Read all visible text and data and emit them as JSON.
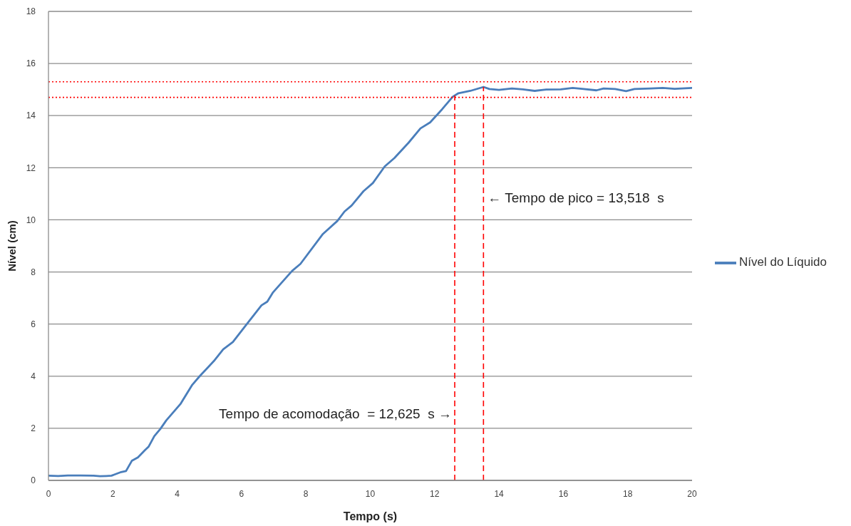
{
  "chart_data": {
    "type": "line",
    "xlabel": "Tempo (s)",
    "ylabel": "Nível (cm)",
    "x": [
      0,
      0.3,
      0.6,
      1.0,
      1.4,
      1.6,
      1.8,
      1.96,
      2.04,
      2.26,
      2.41,
      2.59,
      2.78,
      3.0,
      3.11,
      3.29,
      3.48,
      3.66,
      4.1,
      4.47,
      4.7,
      5.14,
      5.43,
      5.73,
      6.1,
      6.62,
      6.8,
      6.98,
      7.57,
      7.83,
      8.53,
      8.98,
      9.2,
      9.42,
      9.79,
      10.08,
      10.45,
      10.75,
      11.19,
      11.56,
      11.86,
      12.23,
      12.56,
      12.74,
      13.11,
      13.52,
      13.7,
      14.0,
      14.4,
      14.74,
      15.11,
      15.47,
      15.92,
      16.29,
      16.58,
      17.03,
      17.25,
      17.61,
      17.95,
      18.21,
      18.72,
      19.09,
      19.46,
      20.0
    ],
    "series": [
      {
        "name": "Nível do Líquido",
        "color": "#4a7ebb",
        "values": [
          0.18,
          0.17,
          0.19,
          0.19,
          0.18,
          0.16,
          0.17,
          0.18,
          0.22,
          0.32,
          0.36,
          0.75,
          0.88,
          1.16,
          1.29,
          1.7,
          1.98,
          2.3,
          2.93,
          3.67,
          4.0,
          4.58,
          5.03,
          5.31,
          5.9,
          6.72,
          6.86,
          7.22,
          8.04,
          8.31,
          9.46,
          9.96,
          10.32,
          10.55,
          11.1,
          11.41,
          12.05,
          12.37,
          12.96,
          13.51,
          13.74,
          14.24,
          14.72,
          14.86,
          14.95,
          15.1,
          15.02,
          14.99,
          15.04,
          15.01,
          14.95,
          15.0,
          15.01,
          15.06,
          15.03,
          14.97,
          15.04,
          15.02,
          14.94,
          15.02,
          15.04,
          15.06,
          15.03,
          15.06
        ]
      }
    ],
    "xlim": [
      0,
      20
    ],
    "xticks": [
      0,
      2,
      4,
      6,
      8,
      10,
      12,
      14,
      16,
      18,
      20
    ],
    "ylim": [
      0,
      18
    ],
    "yticks": [
      0,
      2,
      4,
      6,
      8,
      10,
      12,
      14,
      16,
      18
    ],
    "grid": "y",
    "legend": "right",
    "marker": "none",
    "line_style": "solid",
    "ref_lines": [
      {
        "axis": "y",
        "value": 15.3,
        "color": "#ff0000",
        "line_style": "dotted"
      },
      {
        "axis": "y",
        "value": 14.7,
        "color": "#ff0000",
        "line_style": "dotted"
      },
      {
        "axis": "x",
        "value": 12.625,
        "label": "Tempo de acomodação  = 12,625  s →",
        "color": "#ff0000",
        "line_style": "dashed"
      },
      {
        "axis": "x",
        "value": 13.518,
        "label": "← Tempo de pico = 13,518  s",
        "color": "#ff0000",
        "line_style": "dashed"
      }
    ]
  }
}
